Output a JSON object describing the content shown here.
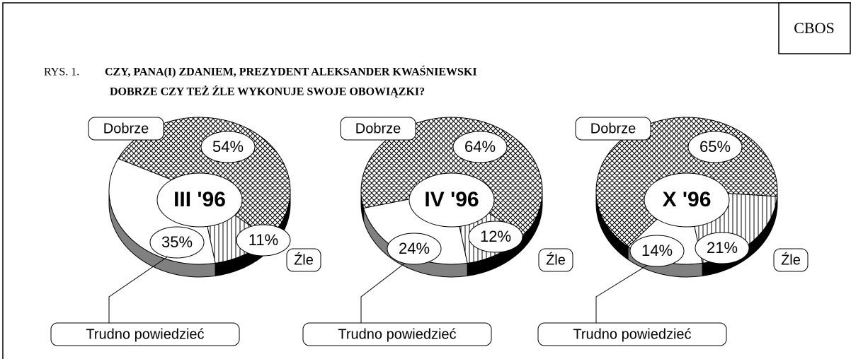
{
  "source": "CBOS",
  "figure_number": "RYS. 1.",
  "title": [
    "CZY, PANA(I) ZDANIEM, PREZYDENT ALEKSANDER KWAŚNIEWSKI",
    "DOBRZE CZY TEŻ ŹLE WYKONUJE SWOJE OBOWIĄZKI?"
  ],
  "chart_data": [
    {
      "type": "pie",
      "title": "III '96",
      "categories": [
        "Dobrze",
        "Trudno powiedzieć",
        "Źle"
      ],
      "values": [
        54,
        35,
        11
      ],
      "value_labels": [
        "54%",
        "35%",
        "11%"
      ]
    },
    {
      "type": "pie",
      "title": "IV '96",
      "categories": [
        "Dobrze",
        "Trudno powiedzieć",
        "Źle"
      ],
      "values": [
        64,
        24,
        12
      ],
      "value_labels": [
        "64%",
        "24%",
        "12%"
      ]
    },
    {
      "type": "pie",
      "title": "X '96",
      "categories": [
        "Dobrze",
        "Trudno powiedzieć",
        "Źle"
      ],
      "values": [
        65,
        14,
        21
      ],
      "value_labels": [
        "65%",
        "14%",
        "21%"
      ]
    }
  ]
}
